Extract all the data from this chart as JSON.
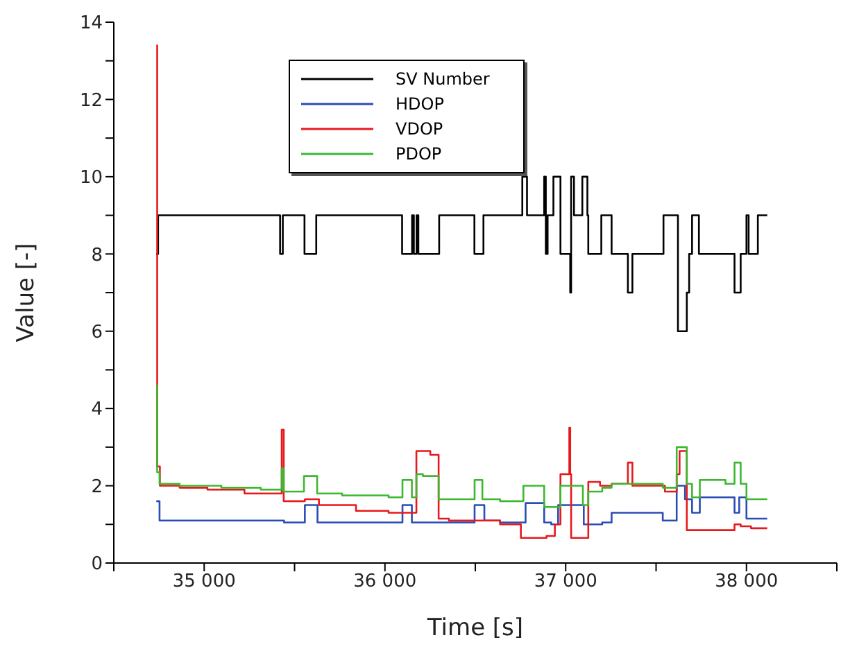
{
  "chart_data": {
    "type": "step",
    "xlabel": "Time [s]",
    "ylabel": "Value [-]",
    "xlim": [
      34500,
      38500
    ],
    "xticks": [
      {
        "value": 34500,
        "label": null
      },
      {
        "value": 35000,
        "label": "35 000"
      },
      {
        "value": 35500,
        "label": null
      },
      {
        "value": 36000,
        "label": "36 000"
      },
      {
        "value": 36500,
        "label": null
      },
      {
        "value": 37000,
        "label": "37 000"
      },
      {
        "value": 37500,
        "label": null
      },
      {
        "value": 38000,
        "label": "38 000"
      },
      {
        "value": 38500,
        "label": null
      }
    ],
    "ylim": [
      0,
      14
    ],
    "yticks": [
      0,
      {
        "value": 1,
        "label": null
      },
      2,
      {
        "value": 3,
        "label": null
      },
      4,
      {
        "value": 5,
        "label": null
      },
      6,
      {
        "value": 7,
        "label": null
      },
      8,
      {
        "value": 9,
        "label": null
      },
      10,
      {
        "value": 11,
        "label": null
      },
      12,
      {
        "value": 13,
        "label": null
      },
      14
    ],
    "grid": false,
    "legend": "top",
    "marker": "none",
    "line_style": "solid",
    "series": [
      {
        "name": "SV Number",
        "color": "#000000",
        "x": [
          34735,
          34745,
          35420,
          35435,
          35555,
          35620,
          36095,
          36150,
          36160,
          36175,
          36185,
          36300,
          36495,
          36545,
          36760,
          36786,
          36881,
          36890,
          36900,
          36932,
          36971,
          37025,
          37030,
          37046,
          37092,
          37120,
          37125,
          37197,
          37254,
          37344,
          37369,
          37541,
          37621,
          37670,
          37683,
          37699,
          37737,
          37934,
          37968,
          38000,
          38012,
          38063,
          38115
        ],
        "values": [
          8,
          9,
          8,
          9,
          8,
          9,
          8,
          9,
          8,
          9,
          8,
          9,
          8,
          9,
          10,
          9,
          10,
          8,
          9,
          10,
          8,
          7,
          10,
          9,
          10,
          9,
          8,
          9,
          8,
          7,
          8,
          9,
          6,
          7,
          8,
          9,
          8,
          7,
          8,
          9,
          8,
          9,
          9
        ]
      },
      {
        "name": "HDOP",
        "color": "#2a4db5",
        "x": [
          34735,
          34753,
          35442,
          35557,
          35627,
          36097,
          36149,
          36496,
          36550,
          36637,
          36778,
          36881,
          36920,
          36958,
          37100,
          37202,
          37254,
          37537,
          37614,
          37660,
          37699,
          37742,
          37934,
          37960,
          38000,
          38115
        ],
        "values": [
          1.6,
          1.1,
          1.05,
          1.5,
          1.05,
          1.5,
          1.05,
          1.5,
          1.1,
          1.05,
          1.55,
          1.05,
          1.0,
          1.5,
          1.0,
          1.05,
          1.3,
          1.1,
          2.0,
          1.65,
          1.3,
          1.7,
          1.3,
          1.7,
          1.15,
          1.15
        ]
      },
      {
        "name": "VDOP",
        "color": "#e8191e",
        "x": [
          34735,
          34740,
          34755,
          34864,
          35018,
          35223,
          35429,
          35440,
          35557,
          35635,
          35840,
          36020,
          36174,
          36251,
          36297,
          36354,
          36637,
          36752,
          36894,
          36940,
          36971,
          37020,
          37025,
          37030,
          37125,
          37190,
          37254,
          37344,
          37369,
          37549,
          37614,
          37630,
          37670,
          37934,
          37968,
          38025,
          38115
        ],
        "values": [
          13.4,
          2.5,
          2.0,
          1.95,
          1.9,
          1.8,
          3.45,
          1.6,
          1.65,
          1.5,
          1.35,
          1.3,
          2.9,
          2.8,
          1.15,
          1.1,
          1.0,
          0.65,
          0.7,
          1.0,
          2.3,
          3.5,
          2.3,
          0.65,
          2.1,
          2.0,
          2.05,
          2.6,
          2.0,
          1.85,
          2.3,
          2.9,
          0.85,
          1.0,
          0.95,
          0.9,
          0.9
        ]
      },
      {
        "name": "PDOP",
        "color": "#3cb830",
        "x": [
          34735,
          34740,
          34753,
          34864,
          35095,
          35313,
          35429,
          35440,
          35552,
          35625,
          35763,
          36020,
          36097,
          36149,
          36174,
          36210,
          36297,
          36496,
          36539,
          36637,
          36766,
          36881,
          36971,
          37095,
          37125,
          37202,
          37254,
          37537,
          37614,
          37670,
          37699,
          37742,
          37884,
          37934,
          37968,
          38000,
          38115
        ],
        "values": [
          4.6,
          2.35,
          2.05,
          2.0,
          1.95,
          1.9,
          2.45,
          1.85,
          2.25,
          1.8,
          1.75,
          1.7,
          2.15,
          1.7,
          2.3,
          2.25,
          1.65,
          2.15,
          1.65,
          1.6,
          2.0,
          1.45,
          2.0,
          1.5,
          1.85,
          1.95,
          2.05,
          1.95,
          3.0,
          2.05,
          1.7,
          2.15,
          2.05,
          2.6,
          2.05,
          1.65,
          1.65
        ]
      }
    ]
  }
}
